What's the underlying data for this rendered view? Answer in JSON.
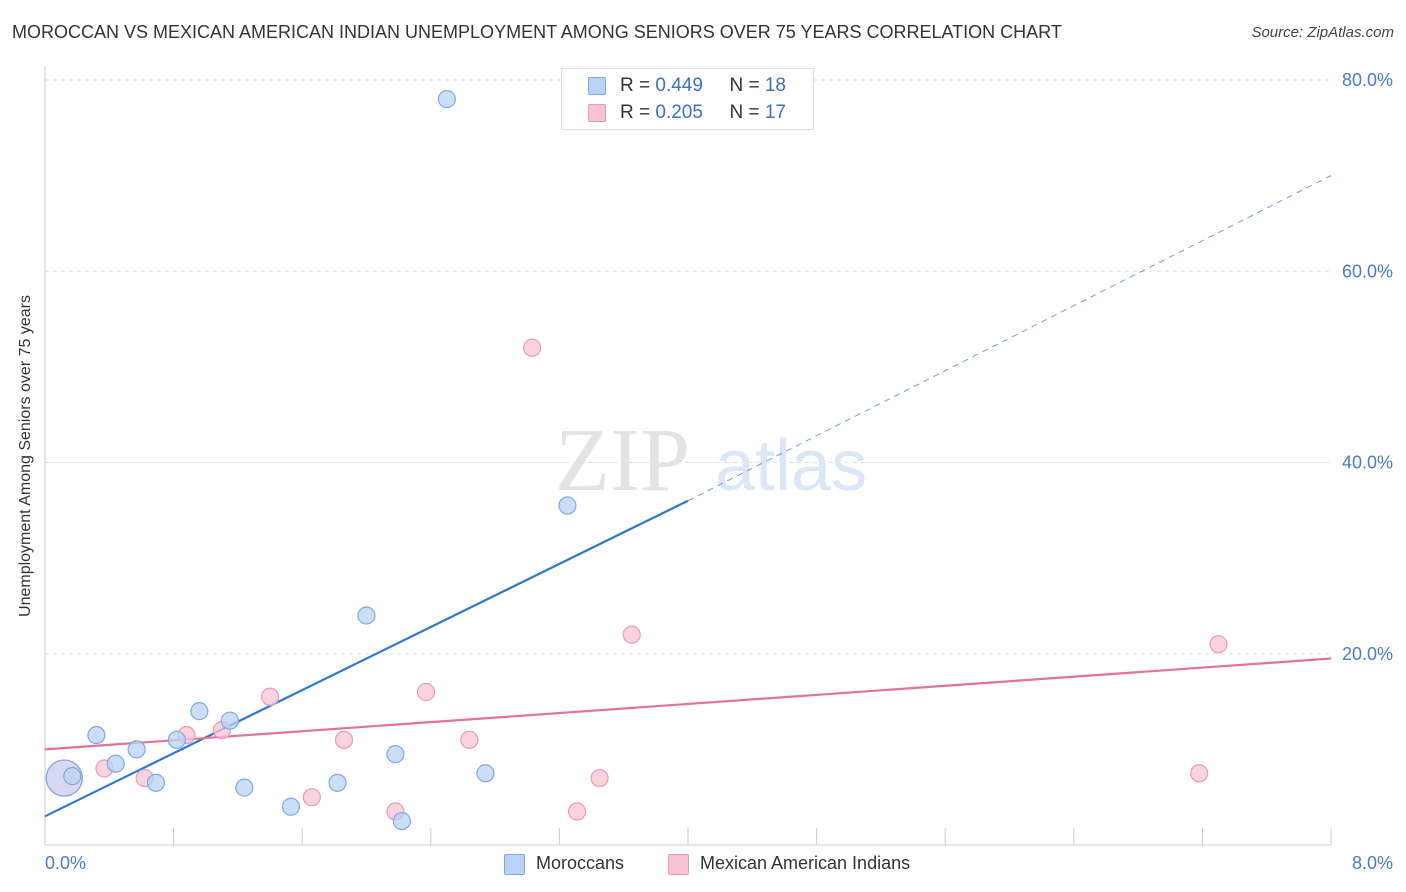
{
  "header": {
    "title": "MOROCCAN VS MEXICAN AMERICAN INDIAN UNEMPLOYMENT AMONG SENIORS OVER 75 YEARS CORRELATION CHART",
    "source": "Source: ZipAtlas.com"
  },
  "watermark": {
    "zip": "ZIP",
    "atlas": "atlas"
  },
  "legend": {
    "rows": [
      {
        "r_label": "R = ",
        "r_value": "0.449",
        "n_label": "N = ",
        "n_value": "18"
      },
      {
        "r_label": "R = ",
        "r_value": "0.205",
        "n_label": "N = ",
        "n_value": "17"
      }
    ]
  },
  "bottom_legend": {
    "items": [
      "Moroccans",
      "Mexican American Indians"
    ]
  },
  "colors": {
    "blue_fill": "#b8d3f5",
    "blue_stroke": "#7fa9e0",
    "blue_line": "#2f78d0",
    "pink_fill": "#f8c4d4",
    "pink_stroke": "#ea9ab4",
    "pink_line": "#e4719a",
    "axis_text": "#4a7cc7",
    "grid": "#dddddd"
  },
  "chart_data": {
    "type": "scatter",
    "title": "MOROCCAN VS MEXICAN AMERICAN INDIAN UNEMPLOYMENT AMONG SENIORS OVER 75 YEARS CORRELATION CHART",
    "xlabel": "",
    "ylabel": "Unemployment Among Seniors over 75 years",
    "xlim": [
      0,
      8
    ],
    "ylim": [
      0,
      82
    ],
    "x_tick_labels": [
      {
        "value": 0,
        "label": "0.0%"
      },
      {
        "value": 8,
        "label": "8.0%"
      }
    ],
    "y_tick_labels": [
      {
        "value": 20,
        "label": "20.0%"
      },
      {
        "value": 40,
        "label": "40.0%"
      },
      {
        "value": 60,
        "label": "60.0%"
      },
      {
        "value": 80,
        "label": "80.0%"
      }
    ],
    "x_minor_ticks": [
      0.8,
      1.6,
      2.4,
      3.2,
      4.0,
      4.8,
      5.6,
      6.4,
      7.2,
      8.0
    ],
    "grid": true,
    "legend_position": "top-center",
    "series": [
      {
        "name": "Moroccans",
        "color": "#b8d3f5",
        "points": [
          {
            "x": 0.12,
            "y": 7.0,
            "size": "large"
          },
          {
            "x": 0.17,
            "y": 7.2
          },
          {
            "x": 0.32,
            "y": 11.5
          },
          {
            "x": 0.44,
            "y": 8.5
          },
          {
            "x": 0.57,
            "y": 10.0
          },
          {
            "x": 0.69,
            "y": 6.5
          },
          {
            "x": 0.82,
            "y": 11.0
          },
          {
            "x": 0.96,
            "y": 14.0
          },
          {
            "x": 1.15,
            "y": 13.0
          },
          {
            "x": 1.24,
            "y": 6.0
          },
          {
            "x": 1.53,
            "y": 4.0
          },
          {
            "x": 1.82,
            "y": 6.5
          },
          {
            "x": 2.0,
            "y": 24.0
          },
          {
            "x": 2.18,
            "y": 9.5
          },
          {
            "x": 2.22,
            "y": 2.5
          },
          {
            "x": 2.5,
            "y": 78.0
          },
          {
            "x": 2.74,
            "y": 7.5
          },
          {
            "x": 3.25,
            "y": 35.5
          }
        ],
        "trend": {
          "x0": 0,
          "y0": 3.0,
          "x1": 4.0,
          "y1": 36.0,
          "dashed_to_x": 8.0,
          "dashed_to_y": 70.0
        }
      },
      {
        "name": "Mexican American Indians",
        "color": "#f8c4d4",
        "points": [
          {
            "x": 0.12,
            "y": 7.0,
            "size": "large"
          },
          {
            "x": 0.37,
            "y": 8.0
          },
          {
            "x": 0.62,
            "y": 7.0
          },
          {
            "x": 0.88,
            "y": 11.5
          },
          {
            "x": 1.1,
            "y": 12.0
          },
          {
            "x": 1.4,
            "y": 15.5
          },
          {
            "x": 1.66,
            "y": 5.0
          },
          {
            "x": 1.86,
            "y": 11.0
          },
          {
            "x": 2.18,
            "y": 3.5
          },
          {
            "x": 2.37,
            "y": 16.0
          },
          {
            "x": 2.64,
            "y": 11.0
          },
          {
            "x": 3.03,
            "y": 52.0
          },
          {
            "x": 3.31,
            "y": 3.5
          },
          {
            "x": 3.45,
            "y": 7.0
          },
          {
            "x": 3.65,
            "y": 22.0
          },
          {
            "x": 7.18,
            "y": 7.5
          },
          {
            "x": 7.3,
            "y": 21.0
          }
        ],
        "trend": {
          "x0": 0,
          "y0": 10.0,
          "x1": 8.0,
          "y1": 19.5
        }
      }
    ]
  }
}
